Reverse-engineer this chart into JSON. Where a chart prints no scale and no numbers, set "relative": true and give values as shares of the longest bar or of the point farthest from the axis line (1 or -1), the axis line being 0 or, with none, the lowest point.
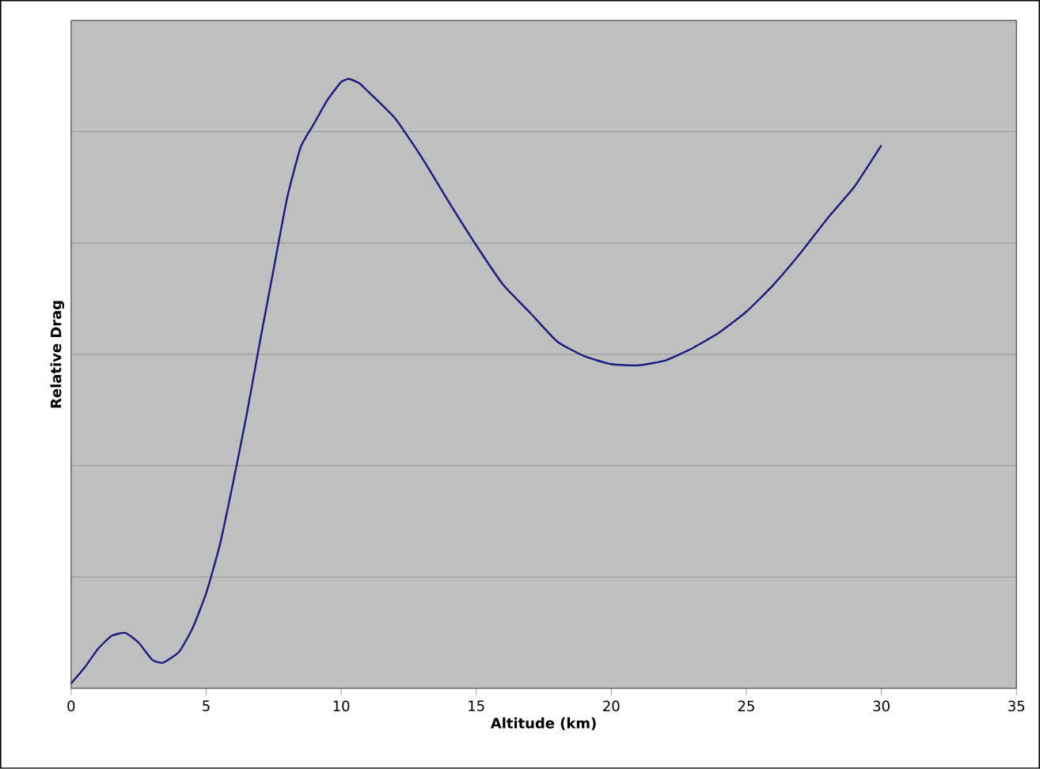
{
  "chart_data": {
    "type": "line",
    "xlabel": "Altitude (km)",
    "ylabel": "Relative Drag",
    "relative": true,
    "grid": "y",
    "marker": "none",
    "line_style": "solid",
    "xlim": [
      0,
      35
    ],
    "xticks": [
      0,
      5,
      10,
      15,
      20,
      25,
      30,
      35
    ],
    "series": [
      {
        "color": "#1a1a80",
        "x": [
          0,
          0.5,
          1,
          1.5,
          2,
          2.5,
          3,
          3.4,
          4,
          4.5,
          5,
          5.5,
          6,
          6.5,
          7,
          7.5,
          8,
          8.5,
          9,
          9.5,
          10,
          10.3,
          10.7,
          11,
          12,
          13,
          14,
          15,
          16,
          17,
          18,
          19,
          20,
          21,
          22,
          23,
          24,
          25,
          26,
          27,
          28,
          29,
          30
        ],
        "values": [
          0.008,
          0.034,
          0.065,
          0.086,
          0.091,
          0.075,
          0.047,
          0.042,
          0.06,
          0.099,
          0.156,
          0.234,
          0.338,
          0.449,
          0.571,
          0.688,
          0.805,
          0.888,
          0.927,
          0.966,
          0.995,
          1,
          0.992,
          0.979,
          0.935,
          0.87,
          0.797,
          0.727,
          0.662,
          0.616,
          0.569,
          0.545,
          0.532,
          0.53,
          0.538,
          0.558,
          0.584,
          0.618,
          0.662,
          0.714,
          0.771,
          0.823,
          0.891
        ]
      }
    ]
  }
}
